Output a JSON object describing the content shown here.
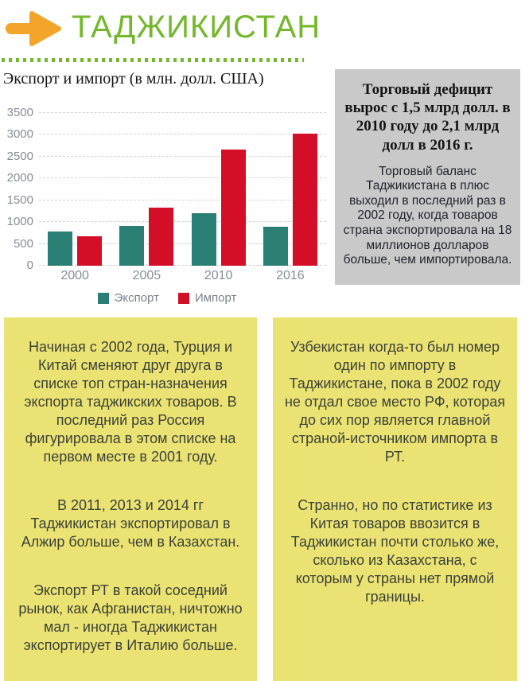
{
  "header": {
    "title": "ТАДЖИКИСТАН",
    "accent_green": "#74b72c",
    "arrow_color": "#f3a52a"
  },
  "chart_data": {
    "type": "bar",
    "title": "Экспорт и импорт (в млн. долл. США)",
    "categories": [
      "2000",
      "2005",
      "2010",
      "2016"
    ],
    "series": [
      {
        "name": "Экспорт",
        "color": "#2a7e73",
        "values": [
          784,
          909,
          1195,
          899
        ]
      },
      {
        "name": "Импорт",
        "color": "#d40e27",
        "values": [
          675,
          1330,
          2657,
          3031
        ]
      }
    ],
    "xlabel": "",
    "ylabel": "",
    "ylim": [
      0,
      3500
    ],
    "yticks": [
      0,
      500,
      1000,
      1500,
      2000,
      2500,
      3000,
      3500
    ],
    "grid": true,
    "gridline_style": "dashed",
    "legend_position": "bottom"
  },
  "info_box": {
    "heading": "Торговый дефицит вырос с 1,5 млрд долл. в 2010 году до 2,1 млрд долл в 2016 г.",
    "body": "Торговый баланс Таджикистана в плюс выходил в последний раз в 2002 году, когда товаров страна экспортировала на 18 миллионов долларов больше, чем импортировала."
  },
  "notes_left": {
    "paragraphs": [
      "Начиная с 2002 года, Турция и Китай сменяют друг друга в списке топ стран-назначения экспорта таджикских товаров. В последний раз Россия фигурировала в этом списке на первом месте в 2001 году.",
      "В 2011, 2013 и 2014 гг Таджикистан экспортировал в Алжир больше, чем в Казахстан.",
      "Экспорт РТ в такой соседний рынок, как Афганистан, ничтожно мал - иногда Таджикистан экспортирует в Италию больше."
    ]
  },
  "notes_right": {
    "paragraphs": [
      "Узбекистан когда-то был номер один по импорту в Таджикистане, пока в 2002 году не отдал свое место РФ, которая до сих пор является главной страной-источником импорта в РТ.",
      "Странно, но по статистике из Китая товаров ввозится в Таджикистан почти столько же, сколько из Казахстана, с которым у страны нет прямой границы."
    ]
  }
}
